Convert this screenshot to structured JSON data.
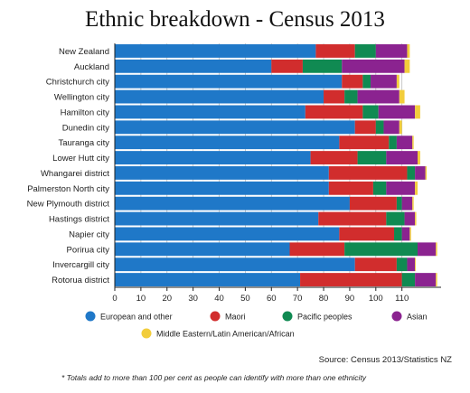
{
  "chart_data": {
    "type": "bar",
    "orientation": "horizontal",
    "stacked": true,
    "title": "Ethnic breakdown - Census 2013",
    "categories": [
      "New Zealand",
      "Auckland",
      "Christchurch city",
      "Wellington city",
      "Hamilton city",
      "Dunedin city",
      "Tauranga city",
      "Lower Hutt city",
      "Whangarei district",
      "Palmerston North city",
      "New Plymouth district",
      "Hastings district",
      "Napier city",
      "Porirua city",
      "Invercargill city",
      "Rotorua district"
    ],
    "series": [
      {
        "name": "European and other",
        "color": "#1f78c8",
        "values": [
          77,
          60,
          87,
          80,
          73,
          92,
          86,
          75,
          82,
          82,
          90,
          78,
          86,
          67,
          92,
          71
        ]
      },
      {
        "name": "Maori",
        "color": "#d12d2d",
        "values": [
          15,
          12,
          8,
          8,
          22,
          8,
          19,
          18,
          30,
          17,
          18,
          26,
          21,
          21,
          16,
          39
        ]
      },
      {
        "name": "Pacific peoples",
        "color": "#108a52",
        "values": [
          8,
          15,
          3,
          5,
          6,
          3,
          3,
          11,
          3,
          5,
          2,
          7,
          3,
          28,
          4,
          5
        ]
      },
      {
        "name": "Asian",
        "color": "#8b2390",
        "values": [
          12,
          24,
          10,
          16,
          14,
          6,
          6,
          12,
          4,
          11,
          4,
          4,
          3,
          7,
          3,
          8
        ]
      },
      {
        "name": "Middle Eastern/Latin American/African",
        "color": "#f2cd3c",
        "values": [
          1,
          2,
          1,
          2,
          2,
          1,
          0.5,
          1,
          0.5,
          1,
          0.5,
          0.5,
          0.5,
          0.5,
          0.3,
          0.5
        ]
      }
    ],
    "xlim": [
      0,
      125
    ],
    "xticks": [
      0,
      10,
      20,
      30,
      40,
      50,
      60,
      70,
      80,
      90,
      100,
      110
    ],
    "grid": true,
    "legend_position": "bottom"
  },
  "source": "Source: Census 2013/Statistics NZ",
  "footnote": "* Totals add to more than 100 per cent as people can identify with more than one ethnicity"
}
